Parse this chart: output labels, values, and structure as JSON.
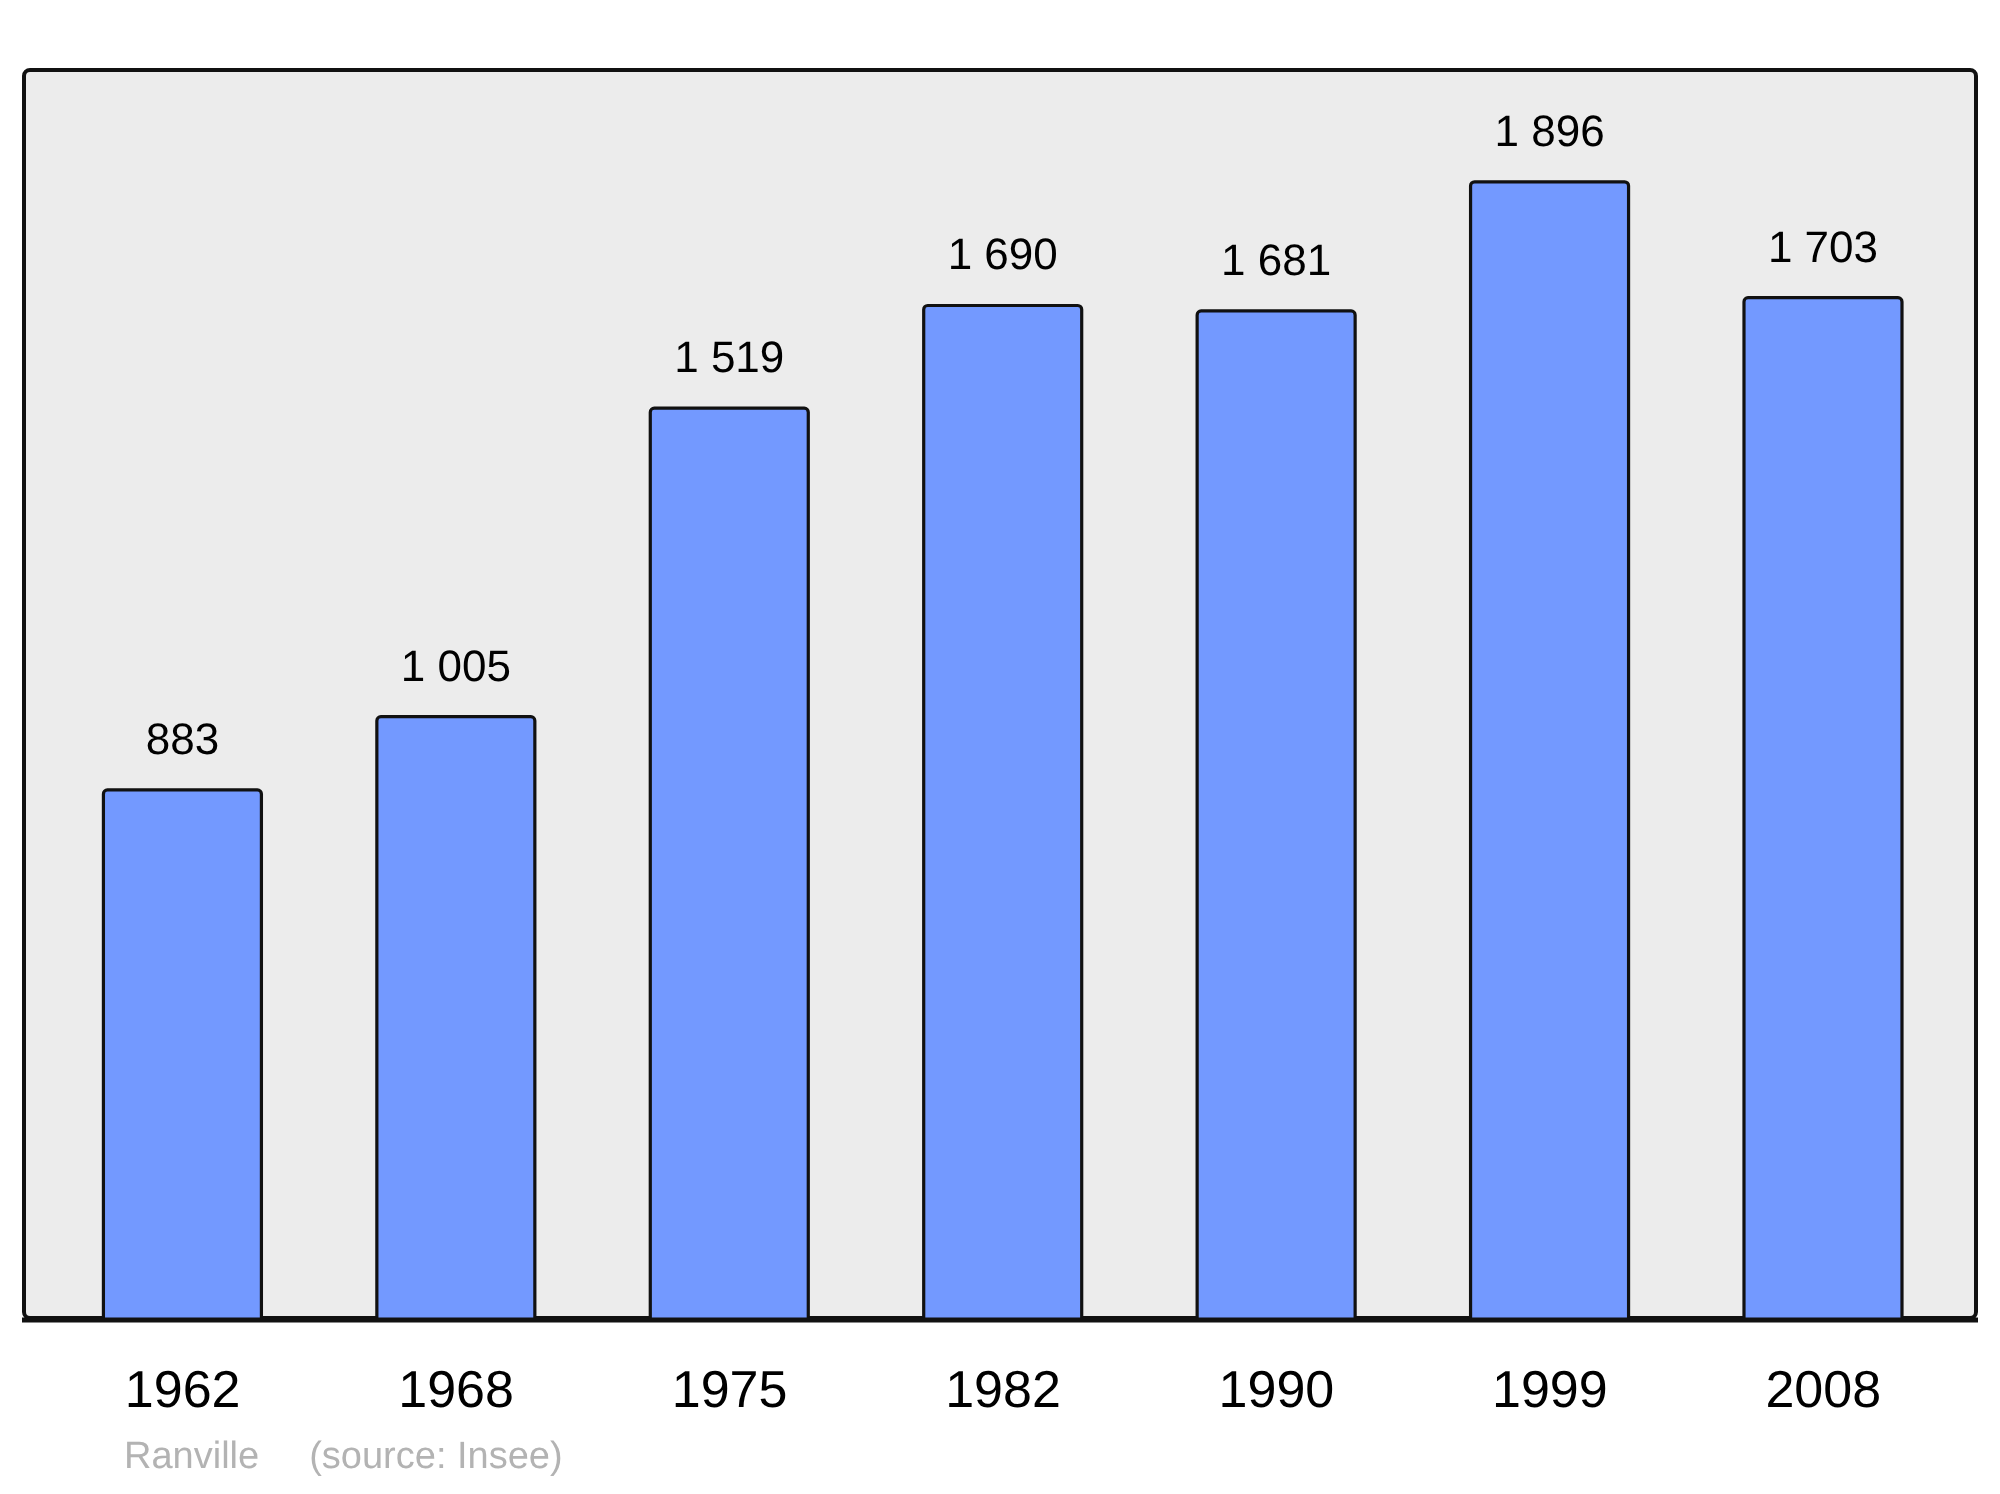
{
  "chart_data": {
    "type": "bar",
    "categories": [
      "1962",
      "1968",
      "1975",
      "1982",
      "1990",
      "1999",
      "2008"
    ],
    "values": [
      883,
      1005,
      1519,
      1690,
      1681,
      1896,
      1703
    ],
    "value_labels": [
      "883",
      "1 005",
      "1 519",
      "1 690",
      "1 681",
      "1 896",
      "1 703"
    ],
    "color": "#7399ff",
    "annotations": [
      "Ranville",
      "(source: Insee)"
    ]
  }
}
